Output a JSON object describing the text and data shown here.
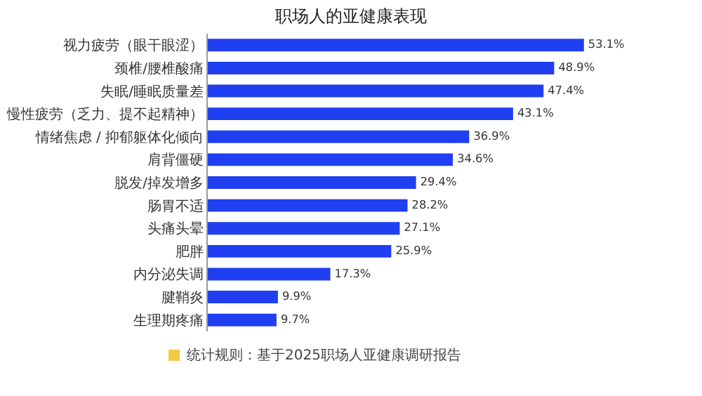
{
  "chart_data": {
    "type": "bar",
    "orientation": "horizontal",
    "title": "职场人的亚健康表现",
    "categories": [
      "视力疲劳（眼干眼涩）",
      "颈椎/腰椎酸痛",
      "失眠/睡眠质量差",
      "慢性疲劳（乏力、提不起精神）",
      "情绪焦虑 / 抑郁躯体化倾向",
      "肩背僵硬",
      "脱发/掉发增多",
      "肠胃不适",
      "头痛头晕",
      "肥胖",
      "内分泌失调",
      "腱鞘炎",
      "生理期疼痛"
    ],
    "values": [
      53.1,
      48.9,
      47.4,
      43.1,
      36.9,
      34.6,
      29.4,
      28.2,
      27.1,
      25.9,
      17.3,
      9.9,
      9.7
    ],
    "value_labels": [
      "53.1%",
      "48.9%",
      "47.4%",
      "43.1%",
      "36.9%",
      "34.6%",
      "29.4%",
      "28.2%",
      "27.1%",
      "25.9%",
      "17.3%",
      "9.9%",
      "9.7%"
    ],
    "color": "#1f3ff0",
    "annotations": [
      "统计规则：基于2025职场人亚健康调研报告"
    ]
  }
}
